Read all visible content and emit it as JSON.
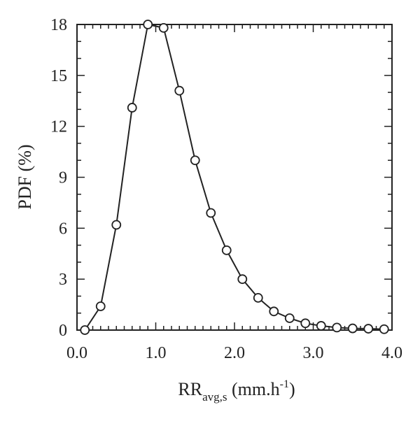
{
  "chart_data": {
    "type": "line",
    "xlabel": {
      "main": "RR",
      "sub": "avg,s",
      "rest": " (mm.h",
      "sup": "-1",
      "close": ")"
    },
    "ylabel": "PDF (%)",
    "xlim": [
      0,
      4
    ],
    "ylim": [
      0,
      18
    ],
    "xticks": [
      "0.0",
      "1.0",
      "2.0",
      "3.0",
      "4.0"
    ],
    "yticks": [
      "0",
      "3",
      "6",
      "9",
      "12",
      "15",
      "18"
    ],
    "grid": false,
    "marker": "open-circle",
    "color": "#222222",
    "series": [
      {
        "x": [
          0.1,
          0.3,
          0.5,
          0.7,
          0.9,
          1.1,
          1.3,
          1.5,
          1.7,
          1.9,
          2.1,
          2.3,
          2.5,
          2.7,
          2.9,
          3.1,
          3.3,
          3.5,
          3.7,
          3.9
        ],
        "y": [
          0.0,
          1.4,
          6.2,
          13.1,
          18.0,
          17.8,
          14.1,
          10.0,
          6.9,
          4.7,
          3.0,
          1.9,
          1.1,
          0.7,
          0.4,
          0.25,
          0.15,
          0.1,
          0.08,
          0.05
        ]
      }
    ]
  }
}
